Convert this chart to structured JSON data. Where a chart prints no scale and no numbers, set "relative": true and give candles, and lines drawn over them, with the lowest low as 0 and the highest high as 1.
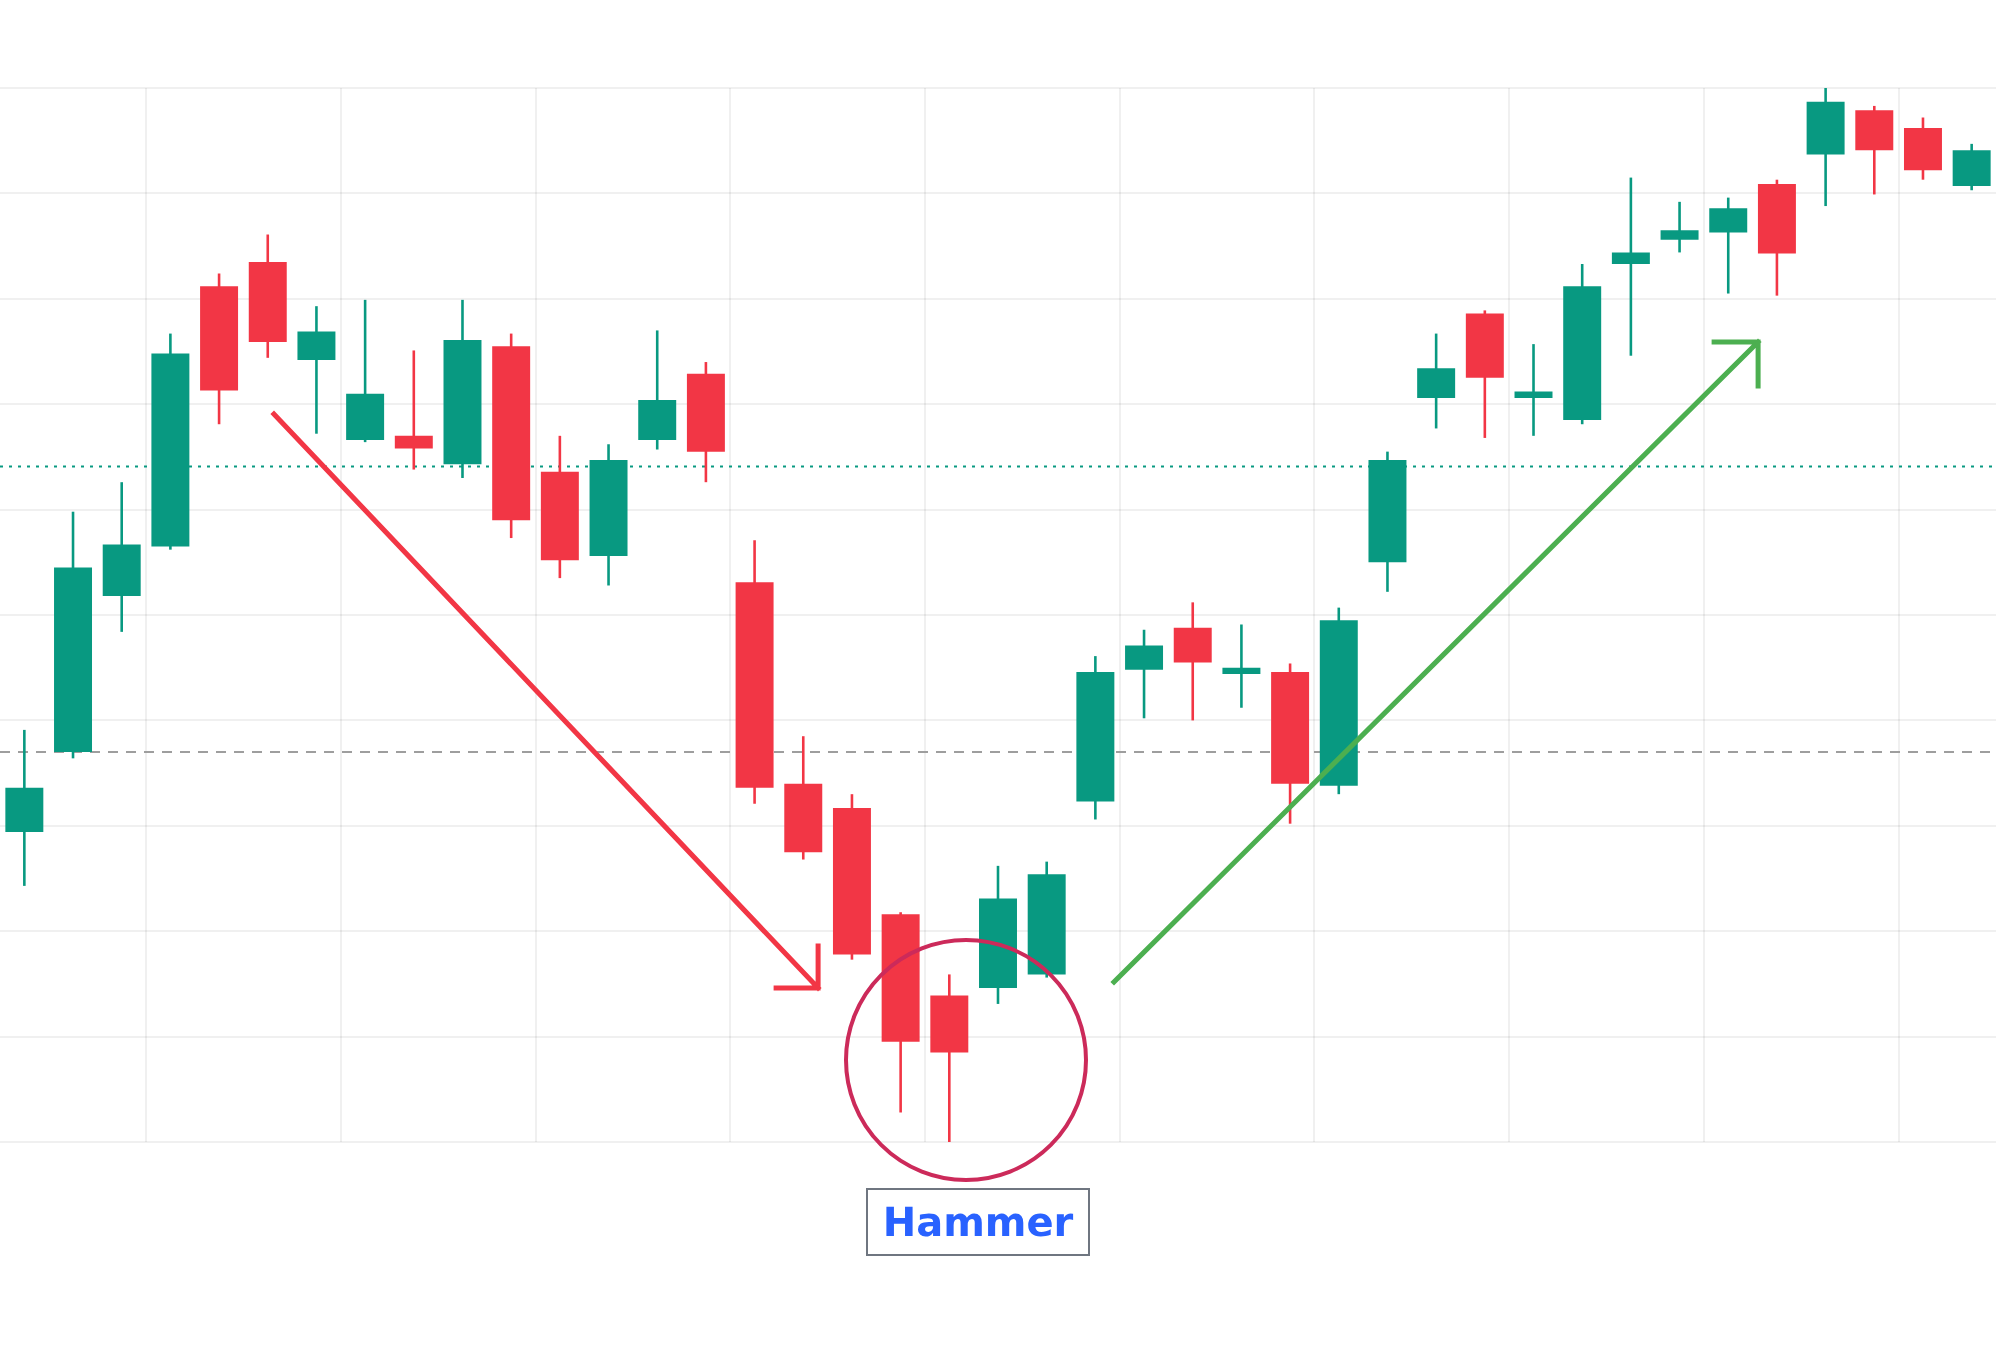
{
  "chart_data": {
    "type": "candlestick",
    "relative": true,
    "grid": true,
    "categories": [
      null,
      null,
      null,
      null,
      null,
      null,
      null,
      null,
      null,
      null,
      null,
      null,
      null,
      null,
      null,
      null,
      null,
      null,
      null,
      null,
      null,
      null,
      null,
      null,
      null,
      null,
      null,
      null,
      null,
      null,
      null,
      null,
      null,
      null,
      null,
      null,
      null,
      null,
      null,
      null,
      null
    ],
    "ohlc": [
      [
        0.294,
        0.391,
        0.243,
        0.336
      ],
      [
        0.37,
        0.598,
        0.364,
        0.545
      ],
      [
        0.518,
        0.626,
        0.484,
        0.567
      ],
      [
        0.565,
        0.767,
        0.562,
        0.748
      ],
      [
        0.812,
        0.824,
        0.681,
        0.713
      ],
      [
        0.835,
        0.861,
        0.744,
        0.759
      ],
      [
        0.742,
        0.793,
        0.672,
        0.769
      ],
      [
        0.666,
        0.799,
        0.664,
        0.71
      ],
      [
        0.67,
        0.751,
        0.638,
        0.658
      ],
      [
        0.643,
        0.799,
        0.63,
        0.761
      ],
      [
        0.755,
        0.767,
        0.573,
        0.59
      ],
      [
        0.636,
        0.67,
        0.535,
        0.552
      ],
      [
        0.556,
        0.662,
        0.528,
        0.647
      ],
      [
        0.666,
        0.77,
        0.657,
        0.704
      ],
      [
        0.729,
        0.74,
        0.626,
        0.655
      ],
      [
        0.531,
        0.571,
        0.321,
        0.336
      ],
      [
        0.34,
        0.385,
        0.268,
        0.275
      ],
      [
        0.317,
        0.33,
        0.173,
        0.178
      ],
      [
        0.216,
        0.218,
        0.028,
        0.095
      ],
      [
        0.139,
        0.159,
        0,
        0.085
      ],
      [
        0.146,
        0.262,
        0.131,
        0.231
      ],
      [
        0.159,
        0.266,
        0.156,
        0.254
      ],
      [
        0.323,
        0.461,
        0.306,
        0.446
      ],
      [
        0.448,
        0.486,
        0.402,
        0.471
      ],
      [
        0.488,
        0.512,
        0.4,
        0.455
      ],
      [
        0.444,
        0.491,
        0.412,
        0.45
      ],
      [
        0.446,
        0.454,
        0.302,
        0.34
      ],
      [
        0.338,
        0.507,
        0.33,
        0.495
      ],
      [
        0.55,
        0.655,
        0.522,
        0.647
      ],
      [
        0.706,
        0.767,
        0.677,
        0.734
      ],
      [
        0.786,
        0.789,
        0.668,
        0.725
      ],
      [
        0.706,
        0.757,
        0.67,
        0.712
      ],
      [
        0.685,
        0.833,
        0.681,
        0.812
      ],
      [
        0.833,
        0.915,
        0.746,
        0.844
      ],
      [
        0.856,
        0.892,
        0.844,
        0.865
      ],
      [
        0.863,
        0.896,
        0.805,
        0.886
      ],
      [
        0.909,
        0.913,
        0.803,
        0.843
      ],
      [
        0.937,
        1,
        0.888,
        0.987
      ],
      [
        0.979,
        0.983,
        0.899,
        0.941
      ],
      [
        0.962,
        0.972,
        0.913,
        0.922
      ],
      [
        0.907,
        0.947,
        0.903,
        0.941
      ]
    ],
    "colors": [
      "#089981",
      "#089981",
      "#089981",
      "#089981",
      "#f23645",
      "#f23645",
      "#089981",
      "#089981",
      "#f23645",
      "#089981",
      "#f23645",
      "#f23645",
      "#089981",
      "#089981",
      "#f23645",
      "#f23645",
      "#f23645",
      "#f23645",
      "#f23645",
      "#f23645",
      "#089981",
      "#089981",
      "#089981",
      "#089981",
      "#f23645",
      "#089981",
      "#f23645",
      "#089981",
      "#089981",
      "#089981",
      "#f23645",
      "#089981",
      "#089981",
      "#089981",
      "#089981",
      "#089981",
      "#f23645",
      "#089981",
      "#f23645",
      "#f23645",
      "#089981"
    ],
    "ref_lines": [
      {
        "axis": "y",
        "value": 0.641,
        "color": "#089981",
        "line_style": "dotted"
      },
      {
        "axis": "y",
        "value": 0.37,
        "color": "#9e9e9e",
        "line_style": "dashed"
      }
    ],
    "annotations": [
      "Hammer"
    ]
  }
}
